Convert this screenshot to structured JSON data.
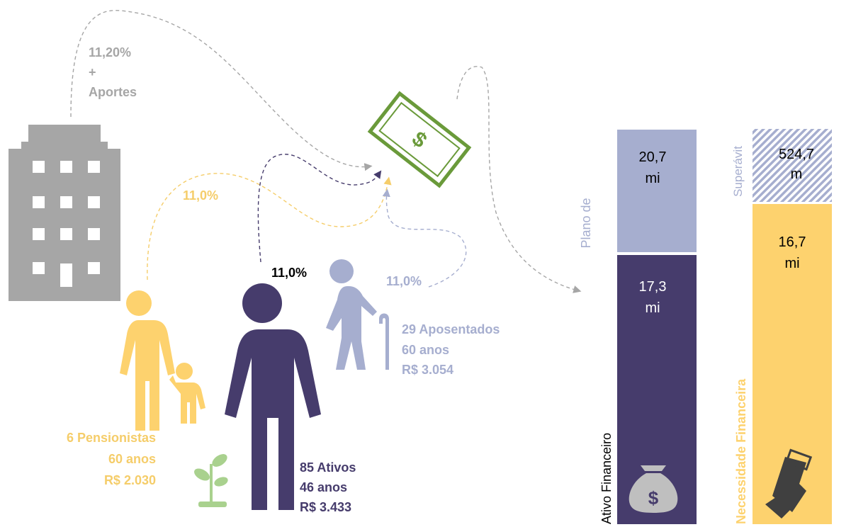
{
  "employer": {
    "rate": "11,20%",
    "plus": "+",
    "label": "Aportes"
  },
  "groups": [
    {
      "rate": "11,0%",
      "lines": [
        "6 Pensionistas",
        "60 anos",
        "R$ 2.030"
      ]
    },
    {
      "rate": "11,0%",
      "lines": [
        "85 Ativos",
        "46 anos",
        "R$ 3.433"
      ]
    },
    {
      "rate": "11,0%",
      "lines": [
        "29 Aposentados",
        "60 anos",
        "R$ 3.054"
      ]
    }
  ],
  "bars": {
    "plan_label": "Plano de",
    "asset_label": "Ativo Financeiro",
    "surplus_label": "Superávit",
    "need_label": "Necessidade Financeira",
    "blocks": [
      {
        "value": "20,7",
        "unit": "mi"
      },
      {
        "value": "17,3",
        "unit": "mi"
      },
      {
        "value": "524,7",
        "unit": "m"
      },
      {
        "value": "16,7",
        "unit": "mi"
      }
    ]
  }
}
